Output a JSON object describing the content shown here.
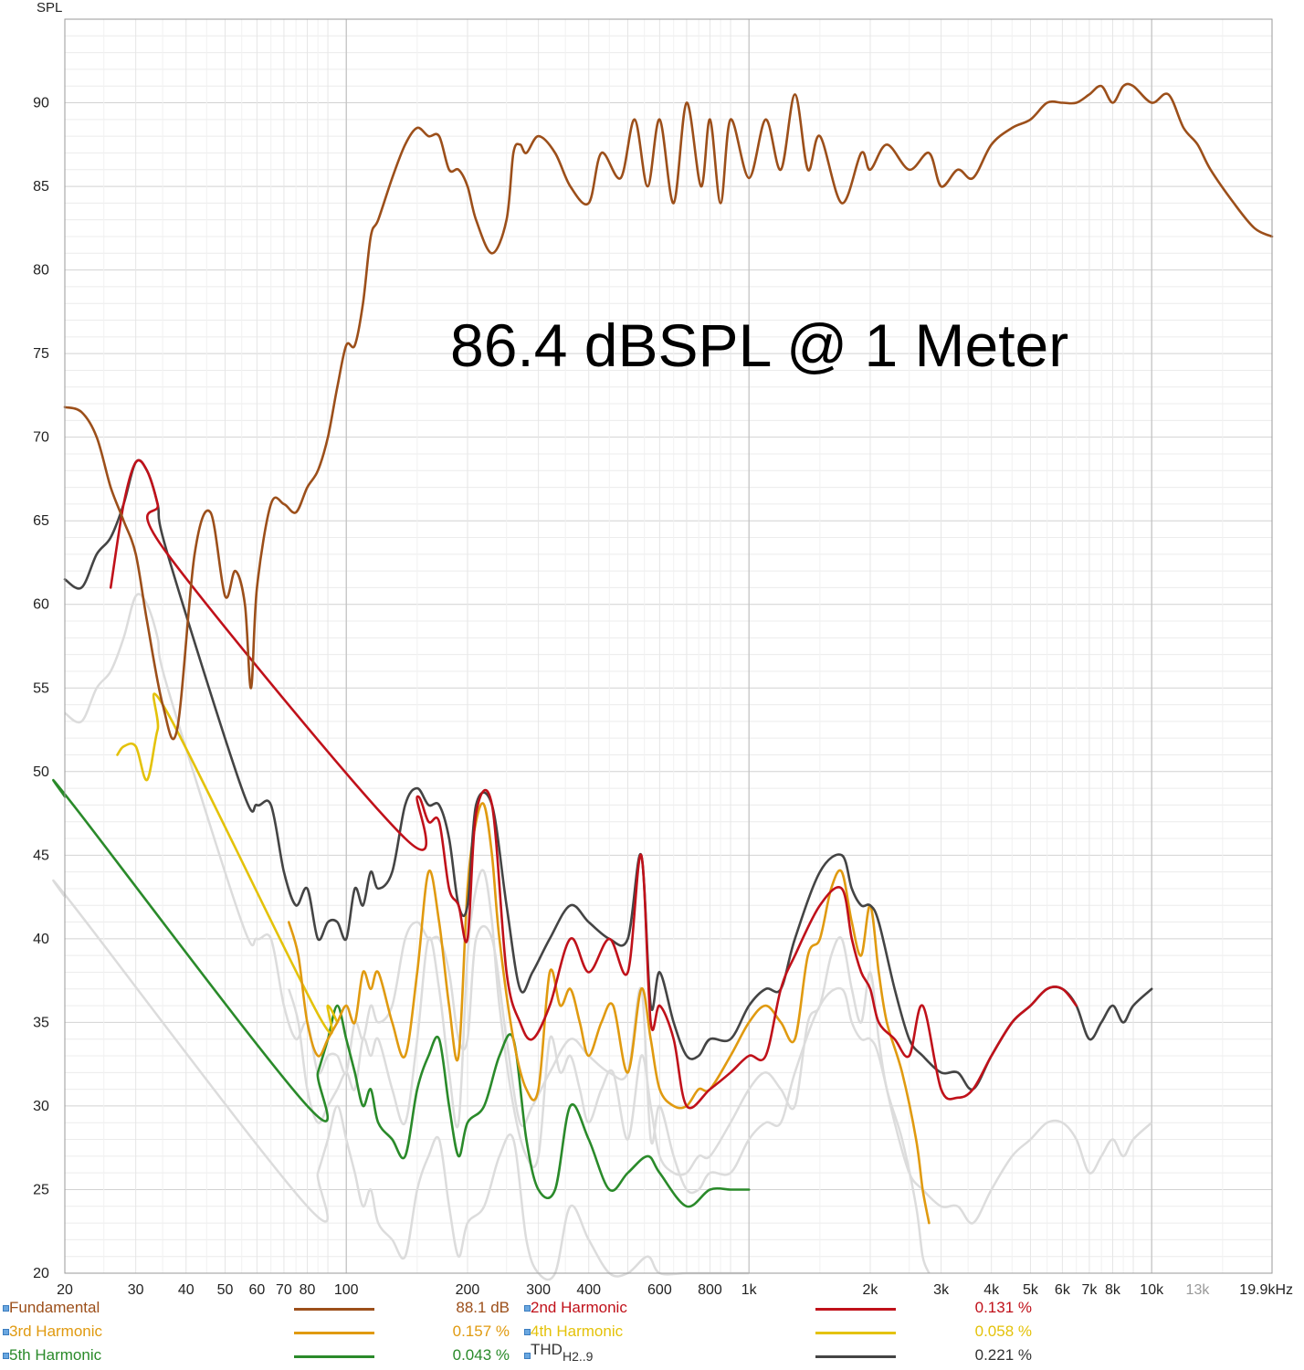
{
  "chart_data": {
    "type": "line",
    "ylabel": "SPL",
    "ylim": [
      20,
      95
    ],
    "y_ticks": [
      "20",
      "25",
      "30",
      "35",
      "40",
      "45",
      "50",
      "55",
      "60",
      "65",
      "70",
      "75",
      "80",
      "85",
      "90"
    ],
    "x_scale": "log",
    "xlim": [
      20,
      19900
    ],
    "x_ticks": [
      {
        "label": "20",
        "hz": 20
      },
      {
        "label": "30",
        "hz": 30
      },
      {
        "label": "40",
        "hz": 40
      },
      {
        "label": "50",
        "hz": 50
      },
      {
        "label": "60",
        "hz": 60
      },
      {
        "label": "70",
        "hz": 70
      },
      {
        "label": "80",
        "hz": 80
      },
      {
        "label": "100",
        "hz": 100
      },
      {
        "label": "200",
        "hz": 200
      },
      {
        "label": "300",
        "hz": 300
      },
      {
        "label": "400",
        "hz": 400
      },
      {
        "label": "600",
        "hz": 600
      },
      {
        "label": "800",
        "hz": 800
      },
      {
        "label": "1k",
        "hz": 1000
      },
      {
        "label": "2k",
        "hz": 2000
      },
      {
        "label": "3k",
        "hz": 3000
      },
      {
        "label": "4k",
        "hz": 4000
      },
      {
        "label": "5k",
        "hz": 5000
      },
      {
        "label": "6k",
        "hz": 6000
      },
      {
        "label": "7k",
        "hz": 7000
      },
      {
        "label": "8k",
        "hz": 8000
      },
      {
        "label": "10k",
        "hz": 10000
      },
      {
        "label": "13k",
        "hz": 13000,
        "muted": true
      },
      {
        "label": "19.9kHz",
        "hz": 19900
      }
    ],
    "annotation": "86.4 dBSPL @ 1 Meter",
    "grid": true,
    "series": [
      {
        "name": "Fundamental",
        "color": "#9c4f1a",
        "legend_value": "88.1 dB",
        "x": [
          20,
          22,
          24,
          26,
          28,
          30,
          32,
          35,
          38,
          42,
          46,
          50,
          53,
          56,
          58,
          60,
          65,
          70,
          75,
          80,
          85,
          90,
          95,
          100,
          105,
          110,
          115,
          120,
          130,
          140,
          150,
          160,
          170,
          180,
          190,
          200,
          210,
          230,
          250,
          260,
          270,
          280,
          300,
          330,
          360,
          400,
          430,
          480,
          520,
          560,
          600,
          650,
          700,
          760,
          800,
          850,
          900,
          1000,
          1100,
          1200,
          1300,
          1400,
          1500,
          1700,
          1900,
          2000,
          2200,
          2500,
          2800,
          3000,
          3300,
          3600,
          4000,
          4500,
          5000,
          5500,
          6000,
          6500,
          7000,
          7500,
          8000,
          8500,
          9000,
          10000,
          11000,
          12000,
          13000,
          14000,
          16000,
          18000,
          19900
        ],
        "y": [
          71.8,
          71.5,
          70,
          67,
          65,
          63,
          59,
          54,
          52.5,
          63,
          65.5,
          60.5,
          62,
          60,
          55,
          61,
          66,
          66,
          65.5,
          67,
          68,
          70,
          73,
          75.5,
          75.5,
          78,
          82,
          83,
          85.5,
          87.5,
          88.5,
          88,
          88,
          86,
          86,
          85,
          83,
          81,
          83,
          87,
          87.5,
          87,
          88,
          87,
          85,
          84,
          87,
          85.5,
          89,
          85,
          89,
          84,
          90,
          85,
          89,
          84,
          89,
          85.5,
          89,
          86,
          90.5,
          86,
          88,
          84,
          87,
          86,
          87.5,
          86,
          87,
          85,
          86,
          85.5,
          87.5,
          88.5,
          89,
          90,
          90,
          90,
          90.5,
          91,
          90,
          91,
          91,
          90,
          90.5,
          88.5,
          87.5,
          86,
          84,
          82.5,
          82
        ]
      },
      {
        "name": "2nd Harmonic",
        "color": "#c0111a",
        "legend_value": "0.131 %",
        "x": [
          26,
          28,
          30,
          32,
          34,
          36,
          140,
          150,
          160,
          170,
          180,
          190,
          200,
          210,
          230,
          250,
          270,
          290,
          320,
          360,
          400,
          450,
          500,
          540,
          570,
          600,
          650,
          700,
          800,
          900,
          1000,
          1100,
          1200,
          1300,
          1500,
          1700,
          1800,
          1900,
          2000,
          2100,
          2300,
          2500,
          2700,
          3000,
          3300,
          3600,
          4000,
          4500,
          5000,
          5500,
          6000,
          6500
        ],
        "y": [
          61,
          66,
          68.5,
          68,
          66,
          63,
          46,
          48.5,
          47,
          47,
          43,
          42,
          40,
          47.5,
          48,
          38,
          35,
          34,
          36,
          40,
          38,
          40,
          38,
          45,
          35,
          36,
          34,
          30,
          31,
          32,
          33,
          33,
          37,
          39,
          42,
          43,
          40,
          38,
          37,
          35,
          34,
          33,
          36,
          31,
          30.5,
          31,
          33,
          35,
          36,
          37,
          37,
          36
        ]
      },
      {
        "name": "3rd Harmonic",
        "color": "#e09a10",
        "legend_value": "0.157 %",
        "x": [
          72,
          76,
          80,
          85,
          90,
          95,
          100,
          105,
          110,
          115,
          120,
          130,
          140,
          150,
          160,
          170,
          180,
          190,
          200,
          210,
          220,
          230,
          240,
          260,
          280,
          300,
          320,
          340,
          360,
          380,
          400,
          430,
          460,
          500,
          540,
          570,
          600,
          650,
          700,
          750,
          800,
          900,
          1000,
          1100,
          1200,
          1300,
          1400,
          1500,
          1600,
          1700,
          1800,
          1900,
          2000,
          2100,
          2200,
          2400,
          2600,
          2700,
          2800
        ],
        "y": [
          41,
          39,
          35,
          33,
          34,
          35,
          36,
          35,
          38,
          37,
          38,
          35,
          33,
          38,
          44,
          41,
          36,
          33,
          43,
          47,
          48,
          45,
          40,
          34,
          31,
          31,
          38,
          36,
          37,
          35,
          33,
          35,
          36,
          32,
          37,
          34,
          31,
          30,
          30,
          31,
          31,
          33,
          35,
          36,
          35,
          34,
          39,
          40,
          43,
          44,
          41,
          39,
          42,
          38,
          35,
          32,
          28,
          25,
          23
        ]
      },
      {
        "name": "4th Harmonic",
        "color": "#e4c20a",
        "legend_value": "0.058 %",
        "x": [
          27,
          28,
          30,
          32,
          34,
          36,
          85,
          90,
          95
        ],
        "y": [
          51,
          51.5,
          51.5,
          49.5,
          52.5,
          53.5,
          35.5,
          36,
          35
        ]
      },
      {
        "name": "5th Harmonic",
        "color": "#2a8a2a",
        "legend_value": "0.043 %",
        "x": [
          20,
          21,
          80,
          85,
          90,
          95,
          100,
          105,
          110,
          115,
          120,
          130,
          140,
          150,
          160,
          170,
          180,
          190,
          200,
          220,
          240,
          260,
          280,
          300,
          330,
          360,
          400,
          450,
          500,
          560,
          600,
          700,
          800,
          900,
          1000
        ],
        "y": [
          48.5,
          48,
          30,
          32,
          34,
          36,
          34,
          32,
          30,
          31,
          29,
          28,
          27,
          31,
          33,
          34,
          30,
          27,
          29,
          30,
          33,
          34,
          28,
          25,
          25,
          30,
          28,
          25,
          26,
          27,
          26,
          24,
          25,
          25,
          25
        ]
      },
      {
        "name": "THD",
        "color": "#444444",
        "legend_value": "0.221 %",
        "x": [
          20,
          22,
          24,
          26,
          28,
          30,
          32,
          34,
          36,
          55,
          60,
          65,
          70,
          75,
          80,
          85,
          90,
          95,
          100,
          105,
          110,
          115,
          120,
          130,
          140,
          150,
          160,
          170,
          180,
          190,
          200,
          210,
          230,
          250,
          270,
          290,
          320,
          360,
          400,
          450,
          500,
          540,
          570,
          600,
          650,
          700,
          750,
          800,
          900,
          1000,
          1100,
          1200,
          1300,
          1500,
          1700,
          1800,
          1900,
          2000,
          2100,
          2300,
          2500,
          2700,
          3000,
          3300,
          3600,
          4000,
          4500,
          5000,
          5500,
          6000,
          6500,
          7000,
          7500,
          8000,
          8500,
          9000,
          10000
        ],
        "y": [
          61.5,
          61,
          63,
          64,
          66,
          68.5,
          68,
          66,
          63,
          49,
          48,
          48,
          44,
          42,
          43,
          40,
          41,
          41,
          40,
          43,
          42,
          44,
          43,
          44,
          48,
          49,
          48,
          48,
          46,
          42,
          42,
          48,
          48,
          42,
          37,
          38,
          40,
          42,
          41,
          40,
          40,
          45,
          36,
          38,
          35,
          33,
          33,
          34,
          34,
          36,
          37,
          37,
          40,
          44,
          45,
          43,
          42,
          42,
          41,
          37,
          34,
          33,
          32,
          32,
          31,
          33,
          35,
          36,
          37,
          37,
          36,
          34,
          35,
          36,
          35,
          36,
          37
        ]
      }
    ]
  },
  "legend": {
    "rows": [
      [
        {
          "name": "Fundamental",
          "value": "88.1 dB",
          "color": "#9c4f1a"
        },
        {
          "name": "2nd Harmonic",
          "value": "0.131 %",
          "color": "#c0111a"
        }
      ],
      [
        {
          "name": "3rd Harmonic",
          "value": "0.157 %",
          "color": "#e09a10"
        },
        {
          "name": "4th Harmonic",
          "value": "0.058 %",
          "color": "#e4c20a"
        }
      ],
      [
        {
          "name": "5th Harmonic",
          "value": "0.043 %",
          "color": "#2a8a2a"
        },
        {
          "name": "THD",
          "sub": "H2..9",
          "value": "0.221 %",
          "color": "#444444"
        }
      ]
    ]
  }
}
